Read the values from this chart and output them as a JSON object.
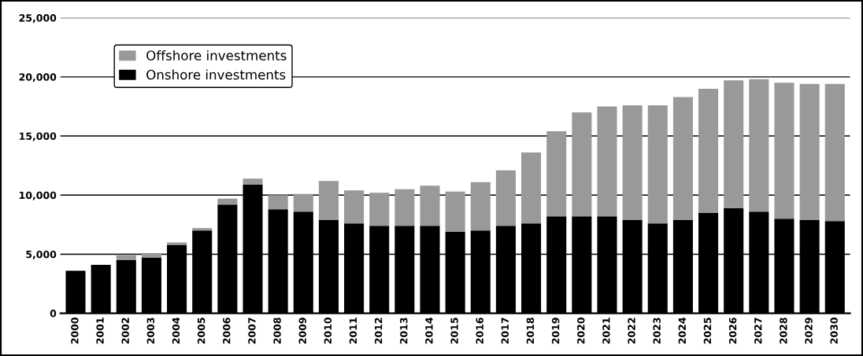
{
  "chart_data": {
    "type": "bar",
    "stacked": true,
    "categories": [
      "2000",
      "2001",
      "2002",
      "2003",
      "2004",
      "2005",
      "2006",
      "2007",
      "2008",
      "2009",
      "2010",
      "2011",
      "2012",
      "2013",
      "2014",
      "2015",
      "2016",
      "2017",
      "2018",
      "2019",
      "2020",
      "2021",
      "2022",
      "2023",
      "2024",
      "2025",
      "2026",
      "2027",
      "2028",
      "2029",
      "2030"
    ],
    "series": [
      {
        "name": "Onshore investments",
        "color": "#000000",
        "values": [
          3600,
          4100,
          4500,
          4700,
          5800,
          7000,
          9200,
          10900,
          8800,
          8600,
          7900,
          7600,
          7400,
          7400,
          7400,
          6900,
          7000,
          7400,
          7600,
          8200,
          8200,
          8200,
          7900,
          7600,
          7900,
          8500,
          8900,
          8600,
          8000,
          7900,
          7800
        ]
      },
      {
        "name": "Offshore investments",
        "color": "#999999",
        "values": [
          0,
          0,
          400,
          400,
          200,
          200,
          500,
          500,
          1200,
          1500,
          3300,
          2800,
          2800,
          3100,
          3400,
          3400,
          4100,
          4700,
          6000,
          7200,
          8800,
          9300,
          9700,
          10000,
          10400,
          10500,
          10800,
          11200,
          11500,
          11500,
          11600
        ]
      }
    ],
    "ylim": [
      0,
      25000
    ],
    "yticks": [
      {
        "value": 0,
        "label": "0"
      },
      {
        "value": 5000,
        "label": "5,000"
      },
      {
        "value": 10000,
        "label": "10,000"
      },
      {
        "value": 15000,
        "label": "15,000"
      },
      {
        "value": 20000,
        "label": "20,000"
      },
      {
        "value": 25000,
        "label": "25,000"
      }
    ],
    "grid": "y",
    "legend": "top left"
  }
}
